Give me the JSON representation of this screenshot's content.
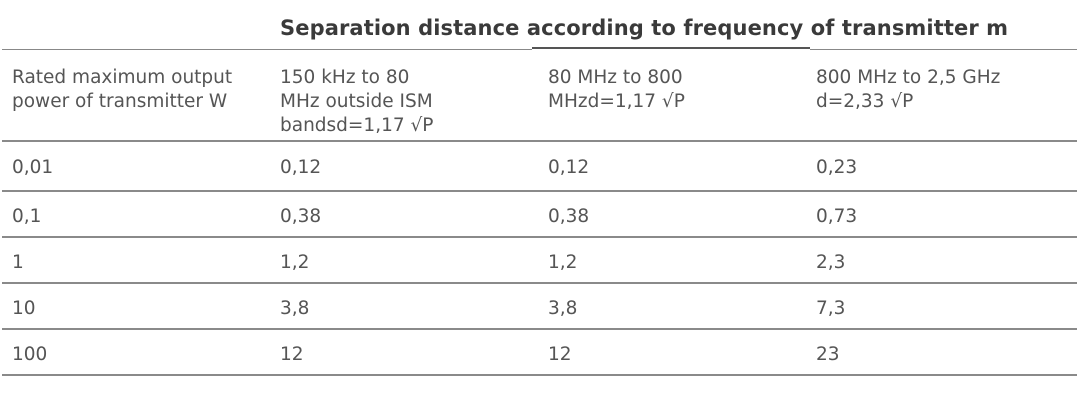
{
  "table": {
    "group_header": "Separation distance according to frequency of transmitter m",
    "columns": [
      "Rated maximum output power of transmitter W",
      "150 kHz to 80 MHz outside ISM bandsd=1,17 √P",
      "80 MHz to 800 MHzd=1,17 √P",
      "800 MHz to 2,5 GHz d=2,33 √P"
    ],
    "column_lines": [
      [
        "Rated maximum output",
        "power of transmitter W"
      ],
      [
        "150 kHz to 80",
        "MHz outside ISM",
        "bandsd=1,17 √P"
      ],
      [
        "80 MHz to 800",
        "MHzd=1,17 √P"
      ],
      [
        "800 MHz to 2,5 GHz",
        "d=2,33 √P"
      ]
    ],
    "rows": [
      [
        "0,01",
        "0,12",
        "0,12",
        "0,23"
      ],
      [
        "0,1",
        "0,38",
        "0,38",
        "0,73"
      ],
      [
        "1",
        "1,2",
        "1,2",
        "2,3"
      ],
      [
        "10",
        "3,8",
        "3,8",
        "7,3"
      ],
      [
        "100",
        "12",
        "12",
        "23"
      ]
    ]
  }
}
